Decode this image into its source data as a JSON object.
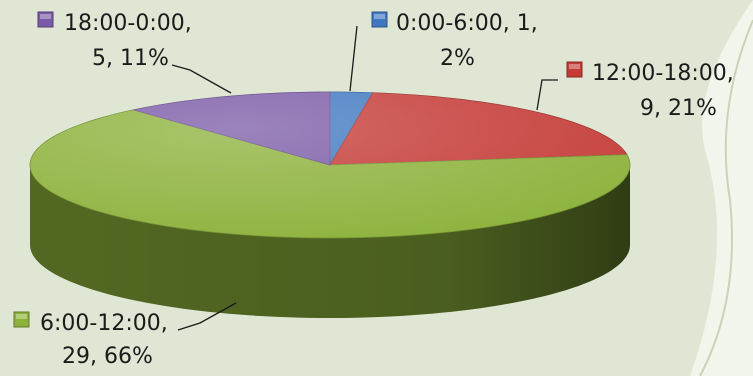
{
  "chart_data": {
    "type": "pie",
    "style": "3d-tilted",
    "legend_placement": "data-labels with leader lines",
    "slices": [
      {
        "category": "0:00-6:00",
        "value": 1,
        "percent": 2,
        "label_lines": [
          "0:00-6:00, 1,",
          "2%"
        ],
        "color": "#3f78c0"
      },
      {
        "category": "12:00-18:00",
        "value": 9,
        "percent": 21,
        "label_lines": [
          "12:00-18:00,",
          "9, 21%"
        ],
        "color": "#c43a36"
      },
      {
        "category": "6:00-12:00",
        "value": 29,
        "percent": 66,
        "label_lines": [
          "6:00-12:00,",
          "29, 66%"
        ],
        "color": "#8cb13a"
      },
      {
        "category": "18:00-0:00",
        "value": 5,
        "percent": 11,
        "label_lines": [
          "18:00-0:00,",
          "5, 11%"
        ],
        "color": "#7a5aa6"
      }
    ]
  },
  "background": {
    "color": "#dfe6d3",
    "accent": "#f2f5ec"
  }
}
